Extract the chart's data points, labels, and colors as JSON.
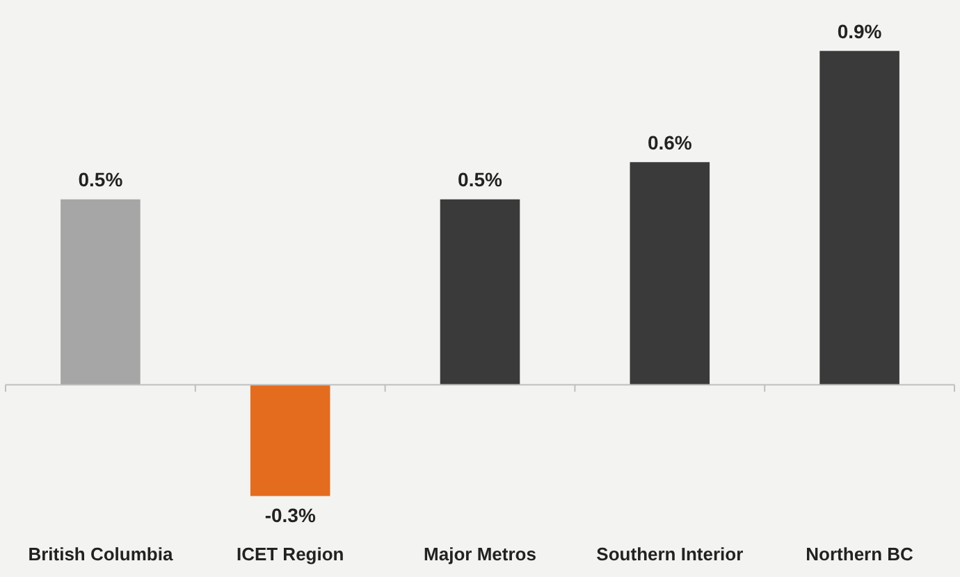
{
  "chart_data": {
    "type": "bar",
    "categories": [
      "British Columbia",
      "ICET Region",
      "Major Metros",
      "Southern Interior",
      "Northern BC"
    ],
    "values": [
      0.5,
      -0.3,
      0.5,
      0.6,
      0.9
    ],
    "colors": [
      "#a6a6a6",
      "#e46c1f",
      "#3a3a3a",
      "#3a3a3a",
      "#3a3a3a"
    ],
    "value_labels": [
      "0.5%",
      "-0.3%",
      "0.5%",
      "0.6%",
      "0.9%"
    ],
    "tick_labels": "x",
    "grid": false,
    "legend": false
  }
}
